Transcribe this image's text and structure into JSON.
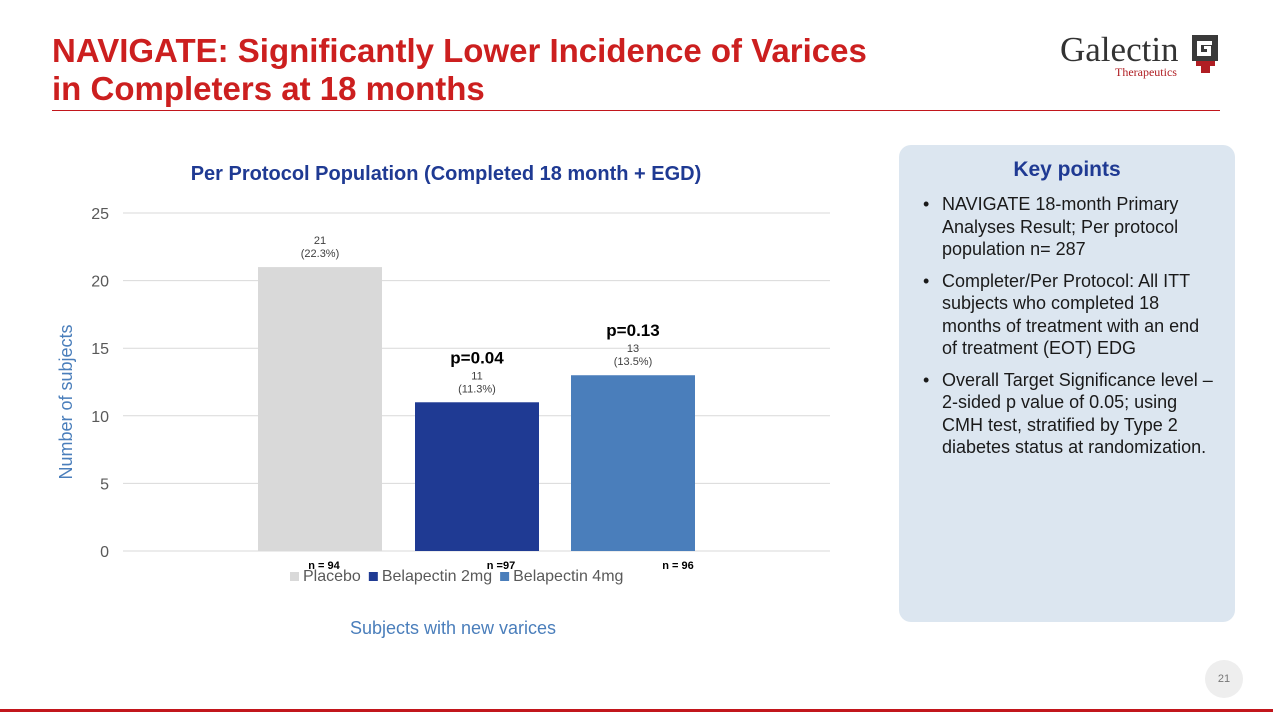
{
  "slide": {
    "title_line1": "NAVIGATE: Significantly Lower Incidence of Varices",
    "title_line2": "in Completers at 18 months",
    "page_number": "21",
    "accent_color": "#cc1f1f"
  },
  "logo": {
    "word": "Galectin",
    "sub": "Therapeutics",
    "mark": "GT",
    "registered": "®"
  },
  "key_points": {
    "title": "Key points",
    "items": [
      "NAVIGATE 18-month Primary Analyses Result; Per protocol population n= 287",
      "Completer/Per Protocol: All ITT subjects who completed 18 months of treatment with an end of treatment (EOT) EDG",
      "Overall Target Significance level – 2-sided p value of 0.05; using CMH test, stratified by Type 2 diabetes status at randomization."
    ]
  },
  "chart_data": {
    "type": "bar",
    "title": "Per Protocol Population (Completed 18 month + EGD)",
    "xlabel": "Subjects with new varices",
    "ylabel": "Number of subjects",
    "ylim": [
      0,
      25
    ],
    "yticks": [
      0,
      5,
      10,
      15,
      20,
      25
    ],
    "grid": true,
    "legend_position": "bottom",
    "categories": [
      "Placebo",
      "Belapectin 2mg",
      "Belapectin 4mg"
    ],
    "values": [
      21,
      11,
      13
    ],
    "value_labels": [
      "21",
      "11",
      "13"
    ],
    "percent_labels": [
      "(22.3%)",
      "(11.3%)",
      "(13.5%)"
    ],
    "n_labels": [
      "n = 94",
      "n =97",
      "n = 96"
    ],
    "p_values": [
      "",
      "p=0.04",
      "p=0.13"
    ],
    "colors": [
      "#d9d9d9",
      "#1f3a93",
      "#4a7ebb"
    ],
    "title_color": "#1f3a93",
    "axis_label_color": "#4a7ebb"
  }
}
